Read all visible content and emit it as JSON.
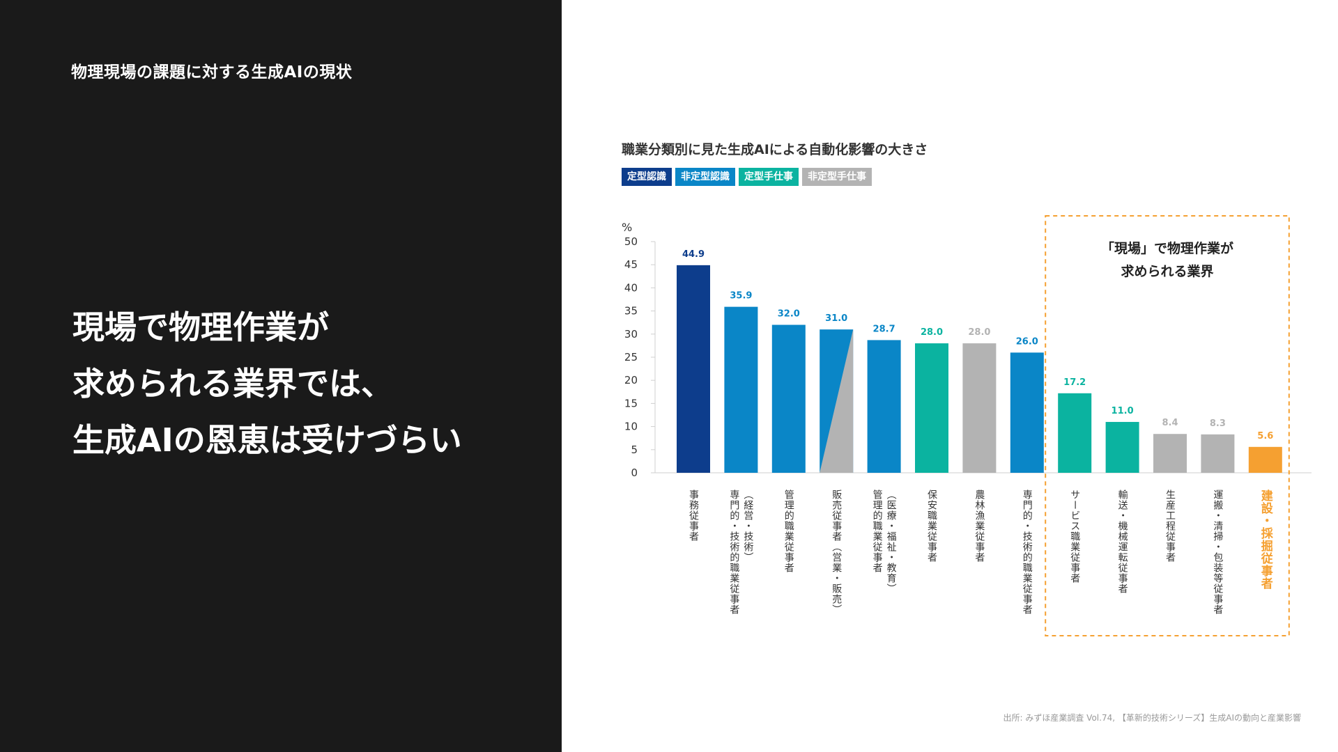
{
  "slide": {
    "label": "物理現場の課題に対する生成AIの現状",
    "headline": [
      "現場で物理作業が",
      "求められる業界では、",
      "生成AIの恩恵は受けづらい"
    ]
  },
  "colors": {
    "left_bg": "#1a1a1a",
    "routine_cognitive": "#0d3d8c",
    "nonroutine_cognitive": "#0a86c7",
    "routine_manual": "#0bb3a0",
    "nonroutine_manual": "#b3b3b3",
    "highlight": "#f5a031"
  },
  "legend": [
    {
      "label": "定型認識",
      "color": "#0d3d8c"
    },
    {
      "label": "非定型認識",
      "color": "#0a86c7"
    },
    {
      "label": "定型手仕事",
      "color": "#0bb3a0"
    },
    {
      "label": "非定型手仕事",
      "color": "#b3b3b3"
    }
  ],
  "source": "出所: みずほ産業調査 Vol.74, 【革新的技術シリーズ】生成AIの動向と産業影響",
  "chart_data": {
    "type": "bar",
    "title": "職業分類別に見た生成AIによる自動化影響の大きさ",
    "ylabel": "%",
    "ylim": [
      0,
      50
    ],
    "yticks": [
      0,
      5,
      10,
      15,
      20,
      25,
      30,
      35,
      40,
      45,
      50
    ],
    "categories": [
      "事務従事者",
      "専門的・技術的職業従事者（経営・技術）",
      "管理的職業従事者",
      "販売従事者（営業・販売）",
      "管理的職業従事者（医療・福祉・教育）",
      "保安職業従事者",
      "農林漁業従事者",
      "専門的・技術的職業従事者",
      "サービス職業従事者",
      "輸送・機械運転従事者",
      "生産工程従事者",
      "運搬・清掃・包装等従事者",
      "建設・採掘従事者"
    ],
    "category_lines": [
      [
        "事務従事者"
      ],
      [
        "専門的・技術的職業従事者",
        "（経営・技術）"
      ],
      [
        "管理的職業従事者"
      ],
      [
        "販売従事者（営業・販売）"
      ],
      [
        "管理的職業従事者",
        "（医療・福祉・教育）"
      ],
      [
        "保安職業従事者"
      ],
      [
        "農林漁業従事者"
      ],
      [
        "専門的・技術的職業従事者"
      ],
      [
        "サービス職業従事者"
      ],
      [
        "輸送・機械運転従事者"
      ],
      [
        "生産工程従事者"
      ],
      [
        "運搬・清掃・包装等従事者"
      ],
      [
        "建設・採掘従事者"
      ]
    ],
    "values": [
      44.9,
      35.9,
      32.0,
      31.0,
      28.7,
      28.0,
      28.0,
      26.0,
      17.2,
      11.0,
      8.4,
      8.3,
      5.6
    ],
    "value_labels": [
      "44.9",
      "35.9",
      "32.0",
      "31.0",
      "28.7",
      "28.0",
      "28.0",
      "26.0",
      "17.2",
      "11.0",
      "8.4",
      "8.3",
      "5.6"
    ],
    "bar_types": [
      "routine_cognitive",
      "nonroutine_cognitive",
      "nonroutine_cognitive",
      "split",
      "nonroutine_cognitive",
      "routine_manual",
      "nonroutine_manual",
      "nonroutine_cognitive",
      "routine_manual",
      "routine_manual",
      "nonroutine_manual",
      "nonroutine_manual",
      "highlight"
    ],
    "annotation": {
      "text": [
        "「現場」で物理作業が",
        "求められる業界"
      ],
      "covers_categories": [
        "サービス職業従事者",
        "輸送・機械運転従事者",
        "生産工程従事者",
        "運搬・清掃・包装等従事者",
        "建設・採掘従事者"
      ]
    }
  }
}
